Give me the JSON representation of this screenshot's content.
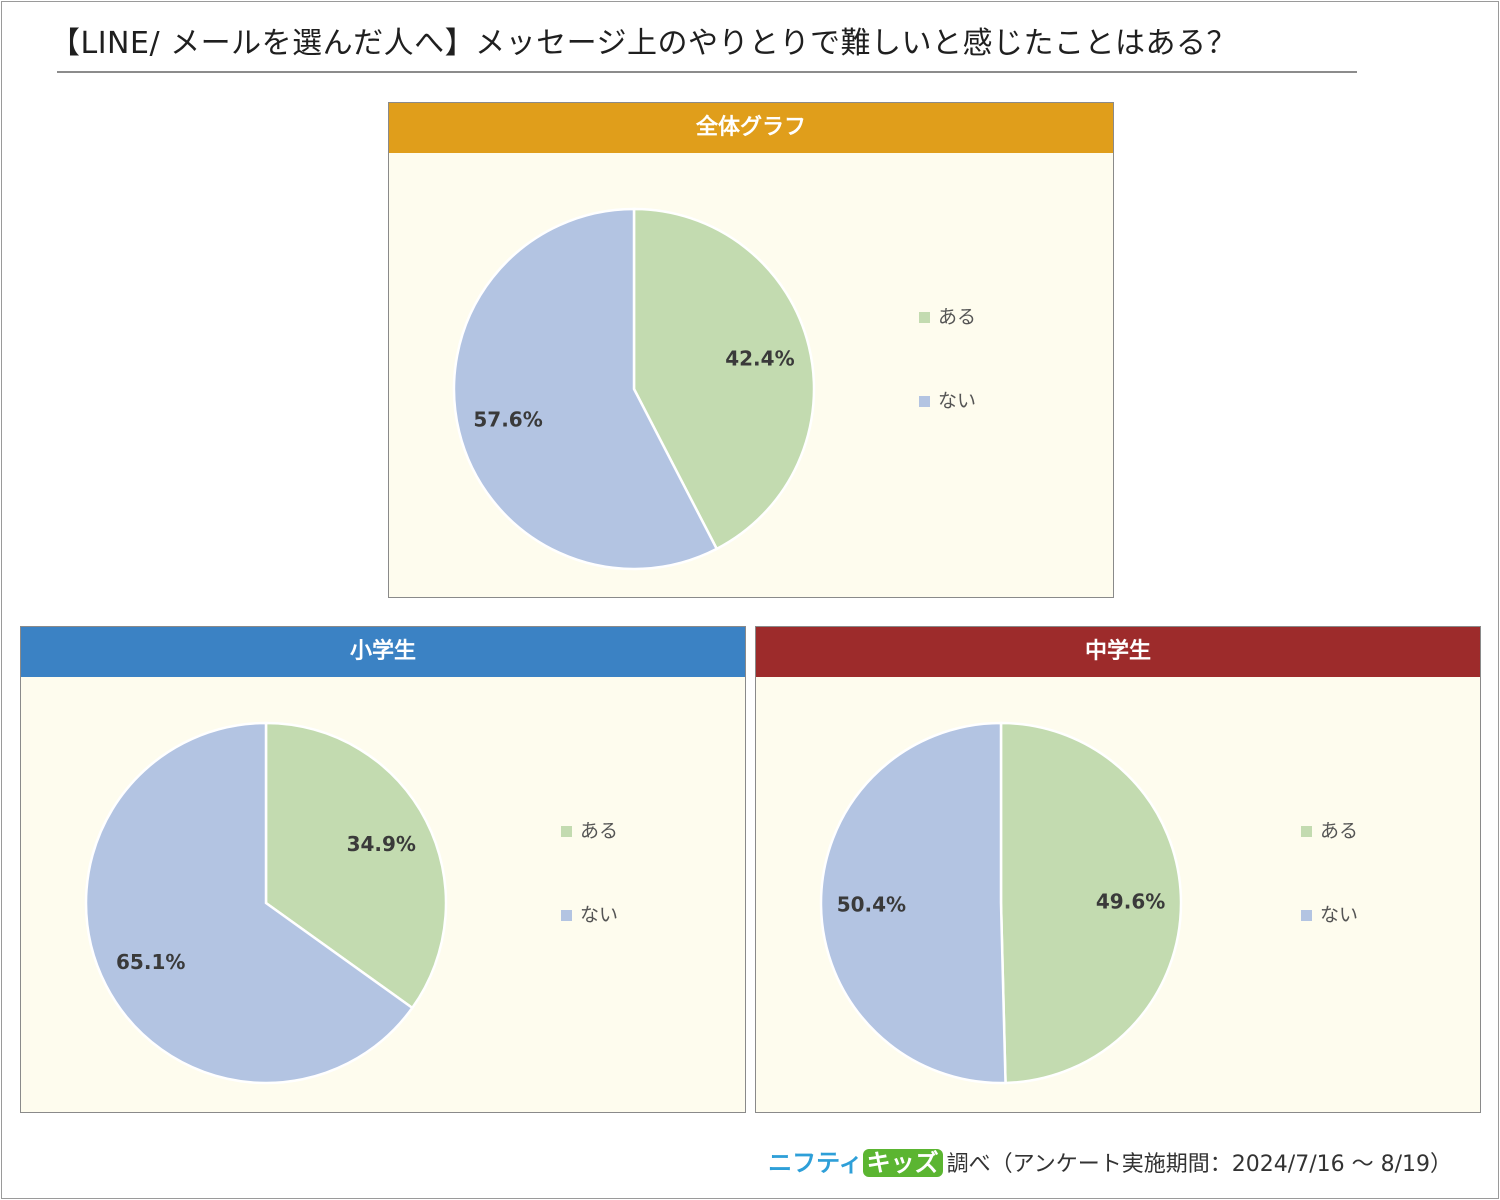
{
  "title": "【LINE/ メールを選んだ人へ】メッセージ上のやりとりで難しいと感じたことはある？",
  "footer": {
    "brand_part1": "ニフティ",
    "brand_part2": "キッズ",
    "note": "調べ（アンケート実施期間：2024/7/16 ～ 8/19）"
  },
  "colors": {
    "yes": "#c3dbb0",
    "no": "#b3c4e2",
    "header_overall": "#e09e1b",
    "header_elementary": "#3b82c4",
    "header_junior_high": "#9d2b2b",
    "panel_bg": "#fefcee"
  },
  "chart_data": [
    {
      "type": "pie",
      "title": "全体グラフ",
      "categories": [
        "ある",
        "ない"
      ],
      "values": [
        42.4,
        57.6
      ],
      "labels": [
        "42.4%",
        "57.6%"
      ],
      "legend": "right"
    },
    {
      "type": "pie",
      "title": "小学生",
      "categories": [
        "ある",
        "ない"
      ],
      "values": [
        34.9,
        65.1
      ],
      "labels": [
        "34.9%",
        "65.1%"
      ],
      "legend": "right"
    },
    {
      "type": "pie",
      "title": "中学生",
      "categories": [
        "ある",
        "ない"
      ],
      "values": [
        49.6,
        50.4
      ],
      "labels": [
        "49.6%",
        "50.4%"
      ],
      "legend": "right"
    }
  ]
}
